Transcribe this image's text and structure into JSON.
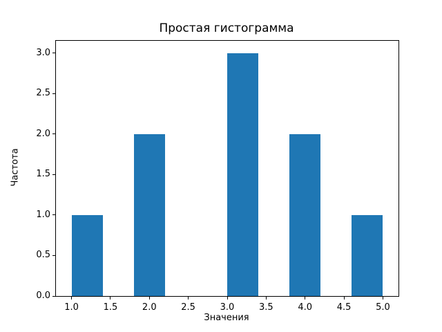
{
  "chart_data": {
    "type": "bar",
    "title": "Простая гистограмма",
    "xlabel": "Значения",
    "ylabel": "Частота",
    "xlim": [
      0.8,
      5.2
    ],
    "ylim": [
      0,
      3.15
    ],
    "grid": false,
    "legend": null,
    "bar_color": "#1f77b4",
    "bars": [
      {
        "x_start": 1.0,
        "x_end": 1.4,
        "count": 1
      },
      {
        "x_start": 1.8,
        "x_end": 2.2,
        "count": 2
      },
      {
        "x_start": 3.0,
        "x_end": 3.4,
        "count": 3
      },
      {
        "x_start": 3.8,
        "x_end": 4.2,
        "count": 2
      },
      {
        "x_start": 4.6,
        "x_end": 5.0,
        "count": 1
      }
    ],
    "x_ticks": [
      "1.0",
      "1.5",
      "2.0",
      "2.5",
      "3.0",
      "3.5",
      "4.0",
      "4.5",
      "5.0"
    ],
    "y_ticks": [
      "0.0",
      "0.5",
      "1.0",
      "1.5",
      "2.0",
      "2.5",
      "3.0"
    ]
  }
}
